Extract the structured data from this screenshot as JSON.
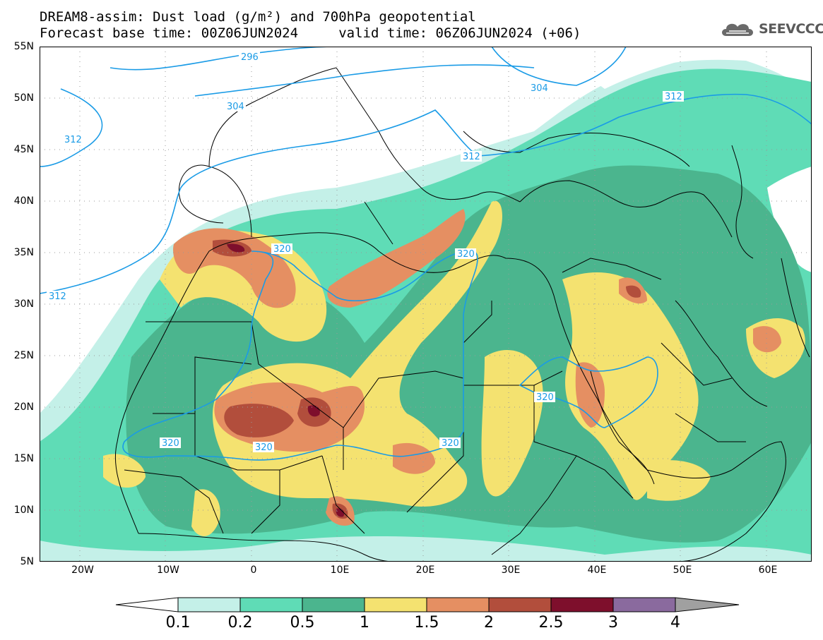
{
  "title_line1": "DREAM8-assim: Dust load (g/m²) and 700hPa geopotential",
  "title_line2": "Forecast base time: 00Z06JUN2024     valid time: 06Z06JUN2024 (+06)",
  "logo": {
    "text": "SEEVCCC",
    "icon": "cloud-icon"
  },
  "map": {
    "lat_labels": [
      "55N",
      "50N",
      "45N",
      "40N",
      "35N",
      "30N",
      "25N",
      "20N",
      "15N",
      "10N",
      "5N"
    ],
    "lon_labels": [
      "20W",
      "10W",
      "0",
      "10E",
      "20E",
      "30E",
      "40E",
      "50E",
      "60E"
    ],
    "contour_labels": [
      "296",
      "304",
      "304",
      "312",
      "312",
      "312",
      "312",
      "320",
      "320",
      "320",
      "320",
      "320",
      "320"
    ]
  },
  "colorbar": {
    "labels": [
      "0.1",
      "0.2",
      "0.5",
      "1",
      "1.5",
      "2",
      "2.5",
      "3",
      "4"
    ],
    "colors": [
      "#c4f0e8",
      "#5fdcb6",
      "#4bb58e",
      "#f4e270",
      "#e58f62",
      "#b24e3c",
      "#7e0f2c",
      "#8a6a9e"
    ],
    "under_color": "#ffffff",
    "over_color": "#a0a0a0"
  },
  "colors": {
    "contour": "#1a9be6",
    "coastline": "#000000",
    "grid": "#9a9a9a"
  }
}
